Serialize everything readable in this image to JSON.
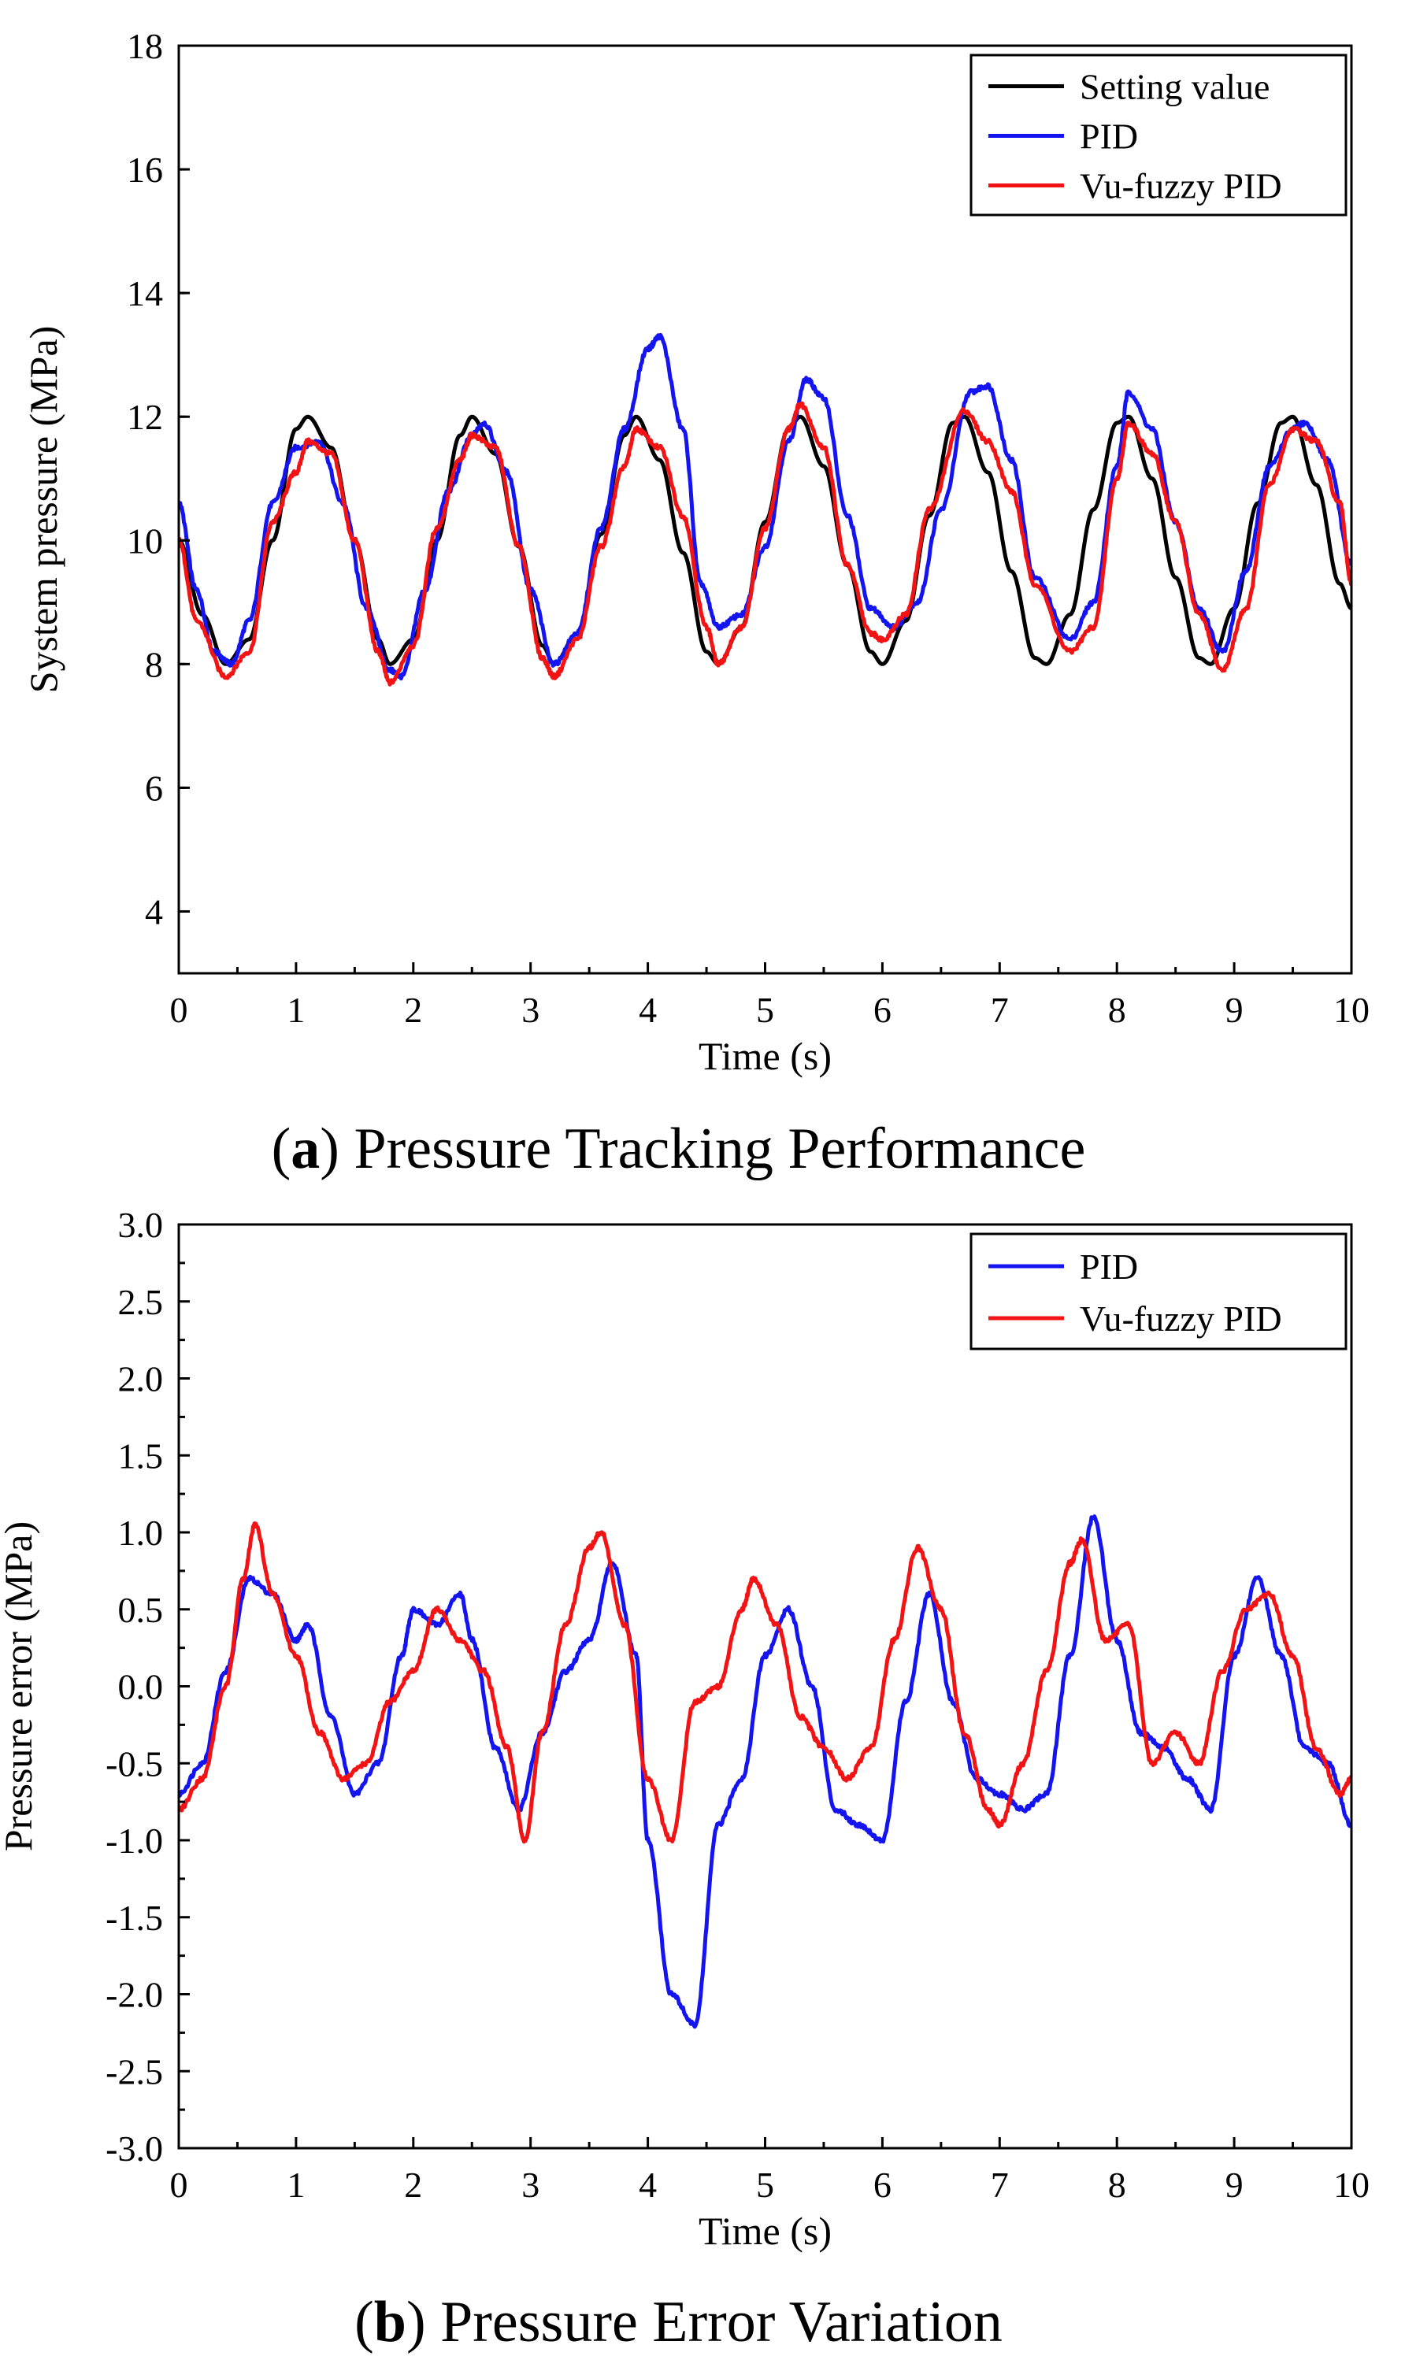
{
  "chart_data": [
    {
      "id": "a",
      "type": "line",
      "caption": {
        "letter": "a",
        "text": ") Pressure Tracking Performance"
      },
      "xlabel": "Time (s)",
      "ylabel": "System pressure (MPa)",
      "xlim": [
        0,
        10
      ],
      "ylim": [
        3,
        18
      ],
      "xticks": [
        0,
        1,
        2,
        3,
        4,
        5,
        6,
        7,
        8,
        9,
        10
      ],
      "yticks": [
        4,
        6,
        8,
        10,
        12,
        14,
        16,
        18
      ],
      "tick_decimals": 0,
      "grid": false,
      "legend": "top-right",
      "series": [
        {
          "name": "Setting value",
          "color": "#000000",
          "x": [
            0,
            0.2,
            0.4,
            0.6,
            0.8,
            1.0,
            1.1,
            1.3,
            1.5,
            1.7,
            1.8,
            2.0,
            2.2,
            2.4,
            2.5,
            2.7,
            2.9,
            3.1,
            3.2,
            3.4,
            3.6,
            3.8,
            3.9,
            4.1,
            4.3,
            4.5,
            4.6,
            4.8,
            5.0,
            5.2,
            5.3,
            5.5,
            5.7,
            5.9,
            6.0,
            6.2,
            6.4,
            6.6,
            6.7,
            6.9,
            7.1,
            7.3,
            7.4,
            7.6,
            7.8,
            8.0,
            8.1,
            8.3,
            8.5,
            8.7,
            8.8,
            9.0,
            9.2,
            9.4,
            9.5,
            9.7,
            9.9,
            10.0
          ],
          "y": [
            10.0,
            8.8,
            8.0,
            8.4,
            10.0,
            11.8,
            12.0,
            11.5,
            10.0,
            8.4,
            8.0,
            8.4,
            10.0,
            11.7,
            12.0,
            11.4,
            9.9,
            8.3,
            8.0,
            8.5,
            10.1,
            11.7,
            12.0,
            11.3,
            9.8,
            8.2,
            8.0,
            8.6,
            10.3,
            11.8,
            12.0,
            11.2,
            9.6,
            8.2,
            8.0,
            8.7,
            10.4,
            11.9,
            12.0,
            11.1,
            9.5,
            8.1,
            8.0,
            8.8,
            10.5,
            11.9,
            12.0,
            11.0,
            9.4,
            8.1,
            8.0,
            8.9,
            10.6,
            11.9,
            12.0,
            10.9,
            9.3,
            8.9
          ]
        },
        {
          "name": "PID",
          "color": "#1414f0",
          "x": [
            0,
            0.15,
            0.3,
            0.45,
            0.6,
            0.8,
            1.0,
            1.2,
            1.4,
            1.6,
            1.8,
            1.9,
            2.1,
            2.3,
            2.5,
            2.6,
            2.8,
            3.0,
            3.2,
            3.4,
            3.6,
            3.8,
            4.0,
            4.1,
            4.3,
            4.45,
            4.6,
            4.8,
            5.0,
            5.2,
            5.35,
            5.5,
            5.7,
            5.9,
            6.1,
            6.3,
            6.5,
            6.75,
            6.9,
            7.1,
            7.3,
            7.6,
            7.8,
            8.0,
            8.1,
            8.3,
            8.5,
            8.7,
            8.9,
            9.1,
            9.3,
            9.5,
            9.6,
            9.8,
            10.0
          ],
          "y": [
            10.6,
            9.2,
            8.2,
            8.0,
            8.7,
            10.6,
            11.5,
            11.6,
            10.6,
            8.9,
            7.9,
            7.8,
            9.2,
            10.8,
            11.7,
            11.9,
            11.1,
            9.2,
            8.0,
            8.5,
            10.2,
            11.8,
            13.1,
            13.3,
            11.8,
            9.3,
            8.6,
            8.8,
            9.9,
            11.6,
            12.6,
            12.3,
            10.4,
            8.9,
            8.6,
            9.0,
            10.5,
            12.4,
            12.5,
            11.3,
            9.4,
            8.4,
            9.0,
            11.2,
            12.4,
            11.8,
            10.3,
            8.9,
            8.2,
            9.5,
            11.2,
            11.8,
            11.9,
            11.3,
            9.6
          ]
        },
        {
          "name": "Vu-fuzzy PID",
          "color": "#f21414",
          "x": [
            0,
            0.15,
            0.4,
            0.6,
            0.8,
            1.0,
            1.1,
            1.3,
            1.5,
            1.7,
            1.8,
            2.0,
            2.2,
            2.4,
            2.5,
            2.7,
            2.9,
            3.1,
            3.2,
            3.4,
            3.6,
            3.8,
            3.9,
            4.1,
            4.3,
            4.5,
            4.6,
            4.8,
            5.0,
            5.2,
            5.3,
            5.5,
            5.7,
            5.9,
            6.0,
            6.2,
            6.4,
            6.7,
            6.9,
            7.1,
            7.3,
            7.6,
            7.8,
            8.0,
            8.1,
            8.3,
            8.5,
            8.7,
            8.9,
            9.1,
            9.3,
            9.5,
            9.7,
            9.9,
            10.0
          ],
          "y": [
            10.0,
            8.7,
            7.8,
            8.2,
            10.3,
            11.1,
            11.6,
            11.4,
            10.0,
            8.2,
            7.7,
            8.3,
            10.2,
            11.3,
            11.7,
            11.5,
            9.9,
            8.1,
            7.8,
            8.4,
            9.9,
            11.2,
            11.8,
            11.5,
            10.4,
            8.6,
            8.0,
            8.6,
            10.2,
            11.8,
            12.2,
            11.5,
            9.6,
            8.5,
            8.4,
            8.8,
            10.5,
            12.1,
            11.6,
            10.8,
            9.3,
            8.2,
            8.6,
            11.0,
            11.9,
            11.4,
            10.3,
            8.8,
            7.9,
            8.9,
            10.9,
            11.8,
            11.6,
            10.6,
            9.3
          ]
        }
      ]
    },
    {
      "id": "b",
      "type": "line",
      "caption": {
        "letter": "b",
        "text": ") Pressure Error Variation"
      },
      "xlabel": "Time (s)",
      "ylabel": "Pressure error (MPa)",
      "xlim": [
        0,
        10
      ],
      "ylim": [
        -3.0,
        3.0
      ],
      "xticks": [
        0,
        1,
        2,
        3,
        4,
        5,
        6,
        7,
        8,
        9,
        10
      ],
      "yticks": [
        -3.0,
        -2.5,
        -2.0,
        -1.5,
        -1.0,
        -0.5,
        0.0,
        0.5,
        1.0,
        1.5,
        2.0,
        2.5,
        3.0
      ],
      "tick_decimals": 1,
      "grid": false,
      "legend": "top-right",
      "series": [
        {
          "name": "PID",
          "color": "#1414f0",
          "x": [
            0,
            0.2,
            0.4,
            0.6,
            0.8,
            1.0,
            1.1,
            1.3,
            1.5,
            1.7,
            1.9,
            2.0,
            2.2,
            2.4,
            2.5,
            2.7,
            2.9,
            3.1,
            3.3,
            3.5,
            3.7,
            3.9,
            4.0,
            4.2,
            4.4,
            4.6,
            4.8,
            5.0,
            5.2,
            5.4,
            5.6,
            5.8,
            6.0,
            6.2,
            6.4,
            6.6,
            6.8,
            7.0,
            7.2,
            7.4,
            7.6,
            7.8,
            8.0,
            8.2,
            8.4,
            8.6,
            8.8,
            9.0,
            9.2,
            9.4,
            9.6,
            9.8,
            10.0
          ],
          "y": [
            -0.7,
            -0.5,
            0.1,
            0.7,
            0.6,
            0.3,
            0.4,
            -0.2,
            -0.7,
            -0.5,
            0.2,
            0.5,
            0.4,
            0.6,
            0.3,
            -0.4,
            -0.8,
            -0.3,
            0.1,
            0.3,
            0.8,
            0.2,
            -1.0,
            -2.0,
            -2.2,
            -0.9,
            -0.6,
            0.2,
            0.5,
            0.0,
            -0.8,
            -0.9,
            -1.0,
            -0.1,
            0.6,
            -0.1,
            -0.6,
            -0.7,
            -0.8,
            -0.7,
            0.2,
            1.1,
            0.3,
            -0.3,
            -0.4,
            -0.6,
            -0.8,
            0.2,
            0.7,
            0.2,
            -0.4,
            -0.5,
            -0.9
          ]
        },
        {
          "name": "Vu-fuzzy PID",
          "color": "#f21414",
          "x": [
            0,
            0.2,
            0.4,
            0.55,
            0.65,
            0.8,
            1.0,
            1.2,
            1.4,
            1.6,
            1.8,
            2.0,
            2.2,
            2.4,
            2.6,
            2.8,
            2.95,
            3.1,
            3.3,
            3.5,
            3.6,
            3.8,
            4.0,
            4.2,
            4.4,
            4.6,
            4.8,
            4.9,
            5.1,
            5.3,
            5.5,
            5.7,
            5.9,
            6.1,
            6.3,
            6.5,
            6.7,
            6.9,
            7.0,
            7.2,
            7.4,
            7.6,
            7.7,
            7.9,
            8.1,
            8.3,
            8.5,
            8.7,
            8.9,
            9.1,
            9.3,
            9.5,
            9.7,
            9.9,
            10.0
          ],
          "y": [
            -0.8,
            -0.6,
            0.0,
            0.7,
            1.05,
            0.6,
            0.2,
            -0.3,
            -0.6,
            -0.5,
            -0.1,
            0.1,
            0.5,
            0.3,
            0.1,
            -0.4,
            -1.0,
            -0.3,
            0.4,
            0.9,
            1.0,
            0.4,
            -0.6,
            -1.0,
            -0.1,
            0.0,
            0.5,
            0.7,
            0.4,
            -0.2,
            -0.4,
            -0.6,
            -0.4,
            0.3,
            0.9,
            0.5,
            -0.3,
            -0.8,
            -0.9,
            -0.5,
            0.1,
            0.8,
            0.95,
            0.3,
            0.4,
            -0.5,
            -0.3,
            -0.5,
            0.1,
            0.5,
            0.6,
            0.2,
            -0.4,
            -0.7,
            -0.6
          ]
        }
      ]
    }
  ]
}
